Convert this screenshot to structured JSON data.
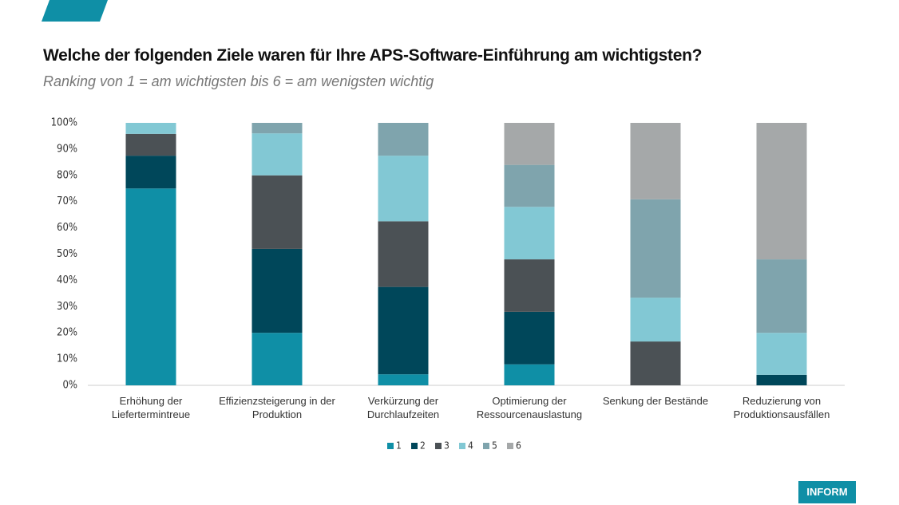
{
  "chart_data": {
    "type": "stacked-bar",
    "title": "Welche der folgenden Ziele waren für Ihre APS-Software-Einführung am wichtigsten?",
    "subtitle": "Ranking von 1 = am wichtigsten bis 6 = am wenigsten wichtig",
    "categories": [
      "Erhöhung der Liefertermintreue",
      "Effizienzsteigerung in der Produktion",
      "Verkürzung der Durchlaufzeiten",
      "Optimierung der Ressourcenauslastung",
      "Senkung der Bestände",
      "Reduzierung von Produktionsausfällen"
    ],
    "series": [
      {
        "name": "1",
        "color": "#0f8fa6",
        "values": [
          75,
          20,
          4.2,
          8,
          0,
          0
        ]
      },
      {
        "name": "2",
        "color": "#00475a",
        "values": [
          12.5,
          32,
          33.3,
          20,
          0,
          4
        ]
      },
      {
        "name": "3",
        "color": "#4b5155",
        "values": [
          8.3,
          28,
          25,
          20,
          16.7,
          0
        ]
      },
      {
        "name": "4",
        "color": "#82c8d4",
        "values": [
          4.2,
          16,
          25,
          20,
          16.7,
          16
        ]
      },
      {
        "name": "5",
        "color": "#7fa4ad",
        "values": [
          0,
          4,
          12.5,
          16,
          37.5,
          28
        ]
      },
      {
        "name": "6",
        "color": "#a5a8a9",
        "values": [
          0,
          0,
          0,
          16,
          29.1,
          52
        ]
      }
    ],
    "ylim": [
      0,
      100
    ],
    "yticks": [
      {
        "value": 0,
        "label": "0%"
      },
      {
        "value": 10,
        "label": "10%"
      },
      {
        "value": 20,
        "label": "20%"
      },
      {
        "value": 30,
        "label": "30%"
      },
      {
        "value": 40,
        "label": "40%"
      },
      {
        "value": 50,
        "label": "50%"
      },
      {
        "value": 60,
        "label": "60%"
      },
      {
        "value": 70,
        "label": "70%"
      },
      {
        "value": 80,
        "label": "80%"
      },
      {
        "value": 90,
        "label": "90%"
      },
      {
        "value": 100,
        "label": "100%"
      }
    ]
  },
  "logo": "INFORM"
}
